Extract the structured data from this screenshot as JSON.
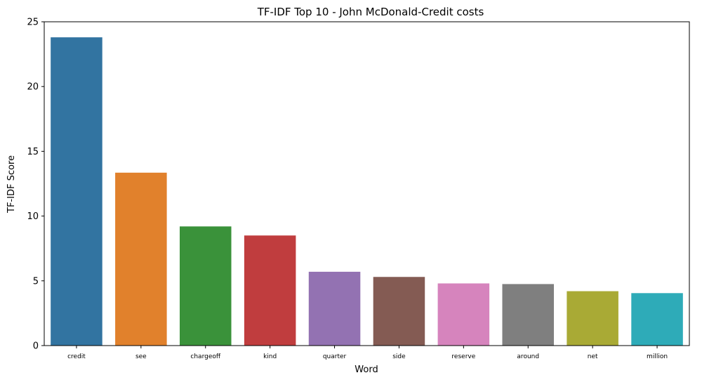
{
  "chart_data": {
    "type": "bar",
    "title": "TF-IDF Top 10 - John McDonald-Credit costs",
    "xlabel": "Word",
    "ylabel": "TF-IDF Score",
    "categories": [
      "credit",
      "see",
      "chargeoff",
      "kind",
      "quarter",
      "side",
      "reserve",
      "around",
      "net",
      "million"
    ],
    "values": [
      23.8,
      13.35,
      9.2,
      8.5,
      5.7,
      5.3,
      4.8,
      4.75,
      4.2,
      4.05
    ],
    "colors": [
      "#3274a1",
      "#e1812c",
      "#3a923a",
      "#c03d3e",
      "#9372b2",
      "#845b53",
      "#d684bd",
      "#7f7f7f",
      "#a9aa35",
      "#2eabb8"
    ],
    "ylim": [
      0,
      25
    ],
    "yticks": [
      0,
      5,
      10,
      15,
      20,
      25
    ],
    "grid": false,
    "legend": "none"
  }
}
